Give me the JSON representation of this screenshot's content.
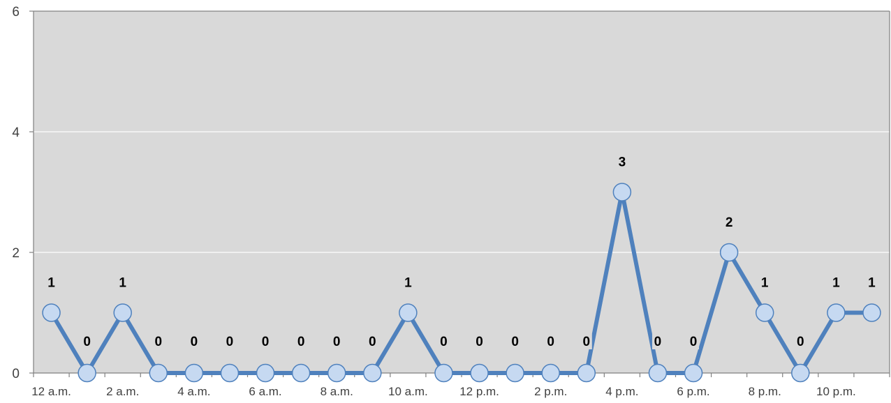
{
  "chart_data": {
    "type": "line",
    "x": [
      "12 a.m.",
      "1 a.m.",
      "2 a.m.",
      "3 a.m.",
      "4 a.m.",
      "5 a.m.",
      "6 a.m.",
      "7 a.m.",
      "8 a.m.",
      "9 a.m.",
      "10 a.m.",
      "11 a.m.",
      "12 p.m.",
      "1 p.m.",
      "2 p.m.",
      "3 p.m.",
      "4 p.m.",
      "5 p.m.",
      "6 p.m.",
      "7 p.m.",
      "8 p.m.",
      "9 p.m.",
      "10 p.m.",
      "11 p.m."
    ],
    "x_tick_labels": [
      "12 a.m.",
      "2 a.m.",
      "4 a.m.",
      "6 a.m.",
      "8 a.m.",
      "10 a.m.",
      "12 p.m.",
      "2 p.m.",
      "4 p.m.",
      "6 p.m.",
      "8 p.m.",
      "10 p.m."
    ],
    "series": [
      {
        "values": [
          1,
          0,
          1,
          0,
          0,
          0,
          0,
          0,
          0,
          0,
          1,
          0,
          0,
          0,
          0,
          0,
          3,
          0,
          0,
          2,
          1,
          0,
          1,
          1
        ]
      }
    ],
    "title": "",
    "xlabel": "",
    "ylabel": "",
    "ylim": [
      0,
      6
    ],
    "yticks": [
      0,
      2,
      4,
      6
    ],
    "grid": true,
    "data_labels": true,
    "colors": {
      "plot_background": "#d9d9d9",
      "line": "#4f81bd",
      "marker_fill": "#c6d9f1",
      "marker_stroke": "#4f81bd",
      "gridline": "#ffffff",
      "axis": "#808080"
    }
  }
}
